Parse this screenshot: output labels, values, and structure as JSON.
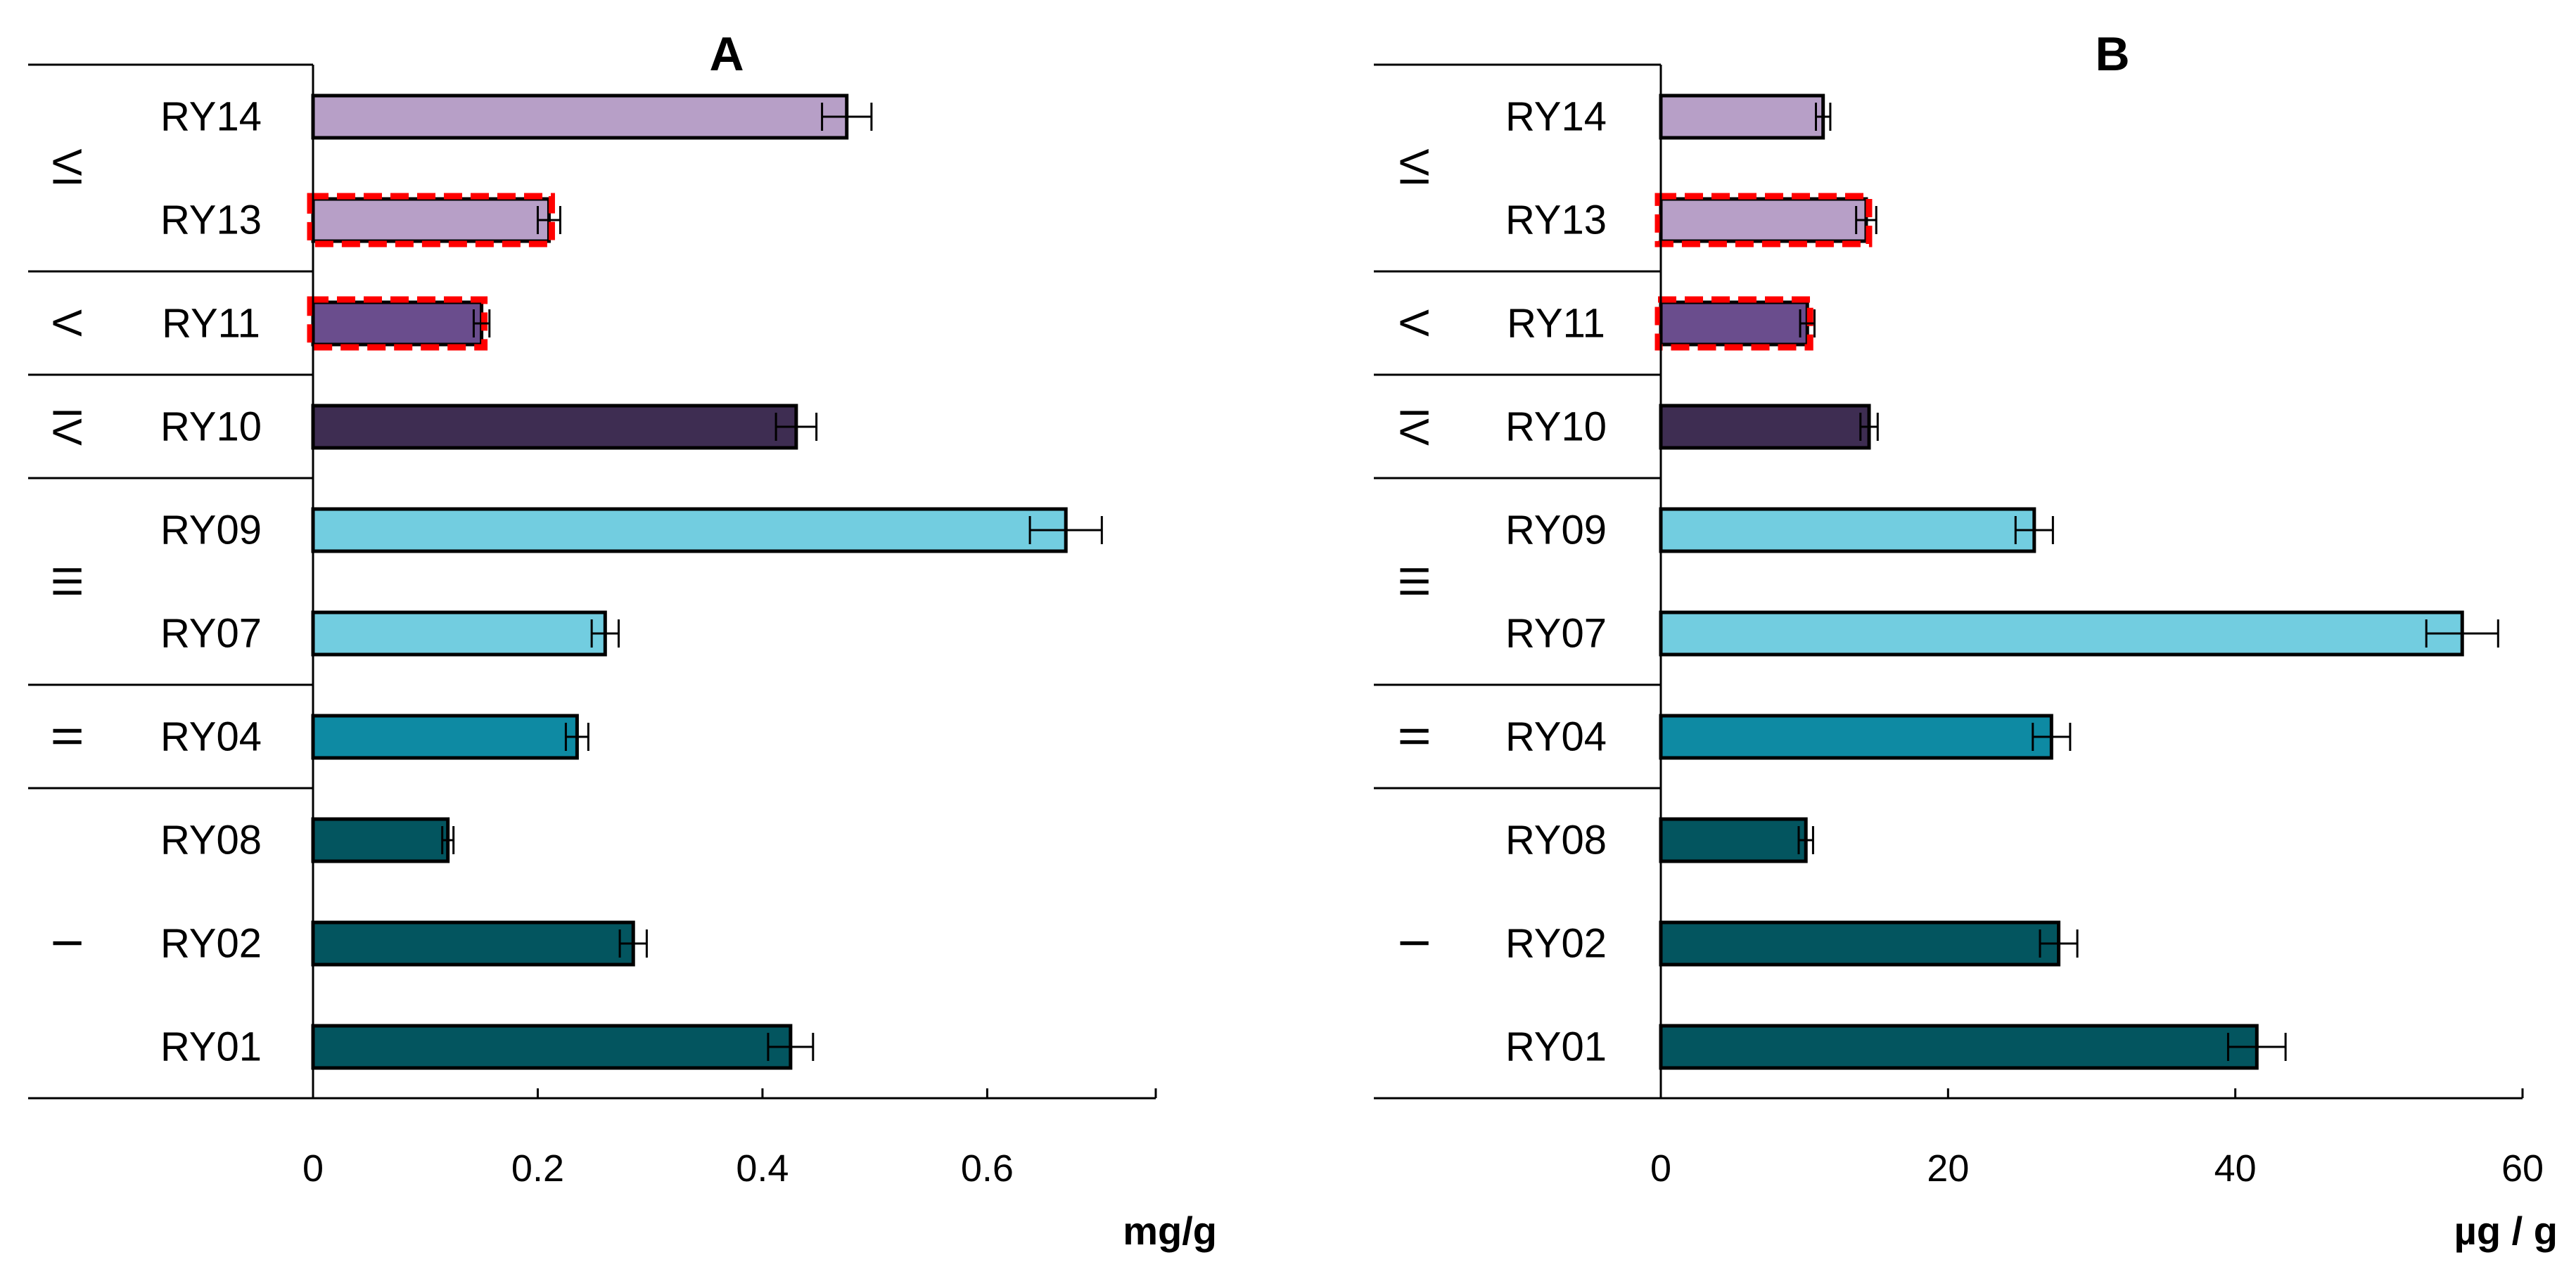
{
  "chart_data": [
    {
      "type": "bar",
      "orientation": "horizontal",
      "title": "A",
      "xlabel": "mg/g",
      "ylabel": "",
      "xlim": [
        0,
        0.75
      ],
      "xticks": [
        0,
        0.2,
        0.4,
        0.6
      ],
      "tick_labels": [
        "0",
        "0.2",
        "0.4",
        "0.6"
      ],
      "grid": false,
      "categories": [
        "RY14",
        "RY13",
        "RY11",
        "RY10",
        "RY09",
        "RY07",
        "RY04",
        "RY08",
        "RY02",
        "RY01"
      ],
      "values": [
        0.475,
        0.21,
        0.15,
        0.43,
        0.67,
        0.26,
        0.235,
        0.12,
        0.285,
        0.425
      ],
      "errors": [
        0.022,
        0.01,
        0.007,
        0.018,
        0.032,
        0.012,
        0.01,
        0.005,
        0.012,
        0.02
      ],
      "colors": [
        "#b79fc7",
        "#b79fc7",
        "#6a4d8d",
        "#3e2d52",
        "#72cde0",
        "#72cde0",
        "#0e8aa3",
        "#03555f",
        "#03555f",
        "#03555f"
      ],
      "highlighted": [
        false,
        true,
        true,
        false,
        false,
        false,
        false,
        false,
        false,
        false
      ],
      "groups": [
        {
          "label": "VI",
          "members": [
            "RY14",
            "RY13"
          ]
        },
        {
          "label": "V",
          "members": [
            "RY11"
          ]
        },
        {
          "label": "IV",
          "members": [
            "RY10"
          ]
        },
        {
          "label": "III",
          "members": [
            "RY09",
            "RY07"
          ]
        },
        {
          "label": "II",
          "members": [
            "RY04"
          ]
        },
        {
          "label": "I",
          "members": [
            "RY08",
            "RY02",
            "RY01"
          ]
        }
      ]
    },
    {
      "type": "bar",
      "orientation": "horizontal",
      "title": "B",
      "xlabel": "µg / g",
      "ylabel": "",
      "xlim": [
        0,
        60
      ],
      "xticks": [
        0,
        20,
        40,
        60
      ],
      "tick_labels": [
        "0",
        "20",
        "40",
        "60"
      ],
      "grid": false,
      "categories": [
        "RY14",
        "RY13",
        "RY11",
        "RY10",
        "RY09",
        "RY07",
        "RY04",
        "RY08",
        "RY02",
        "RY01"
      ],
      "values": [
        11.3,
        14.3,
        10.2,
        14.5,
        26,
        55.8,
        27.2,
        10.1,
        27.7,
        41.5
      ],
      "errors": [
        0.5,
        0.7,
        0.5,
        0.6,
        1.3,
        2.5,
        1.3,
        0.5,
        1.3,
        2.0
      ],
      "colors": [
        "#b79fc7",
        "#b79fc7",
        "#6a4d8d",
        "#3e2d52",
        "#72cde0",
        "#72cde0",
        "#0e8aa3",
        "#03555f",
        "#03555f",
        "#03555f"
      ],
      "highlighted": [
        false,
        true,
        true,
        false,
        false,
        false,
        false,
        false,
        false,
        false
      ],
      "groups": [
        {
          "label": "VI",
          "members": [
            "RY14",
            "RY13"
          ]
        },
        {
          "label": "V",
          "members": [
            "RY11"
          ]
        },
        {
          "label": "IV",
          "members": [
            "RY10"
          ]
        },
        {
          "label": "III",
          "members": [
            "RY09",
            "RY07"
          ]
        },
        {
          "label": "II",
          "members": [
            "RY04"
          ]
        },
        {
          "label": "I",
          "members": [
            "RY08",
            "RY02",
            "RY01"
          ]
        }
      ]
    }
  ],
  "highlight_color": "#ff0000"
}
